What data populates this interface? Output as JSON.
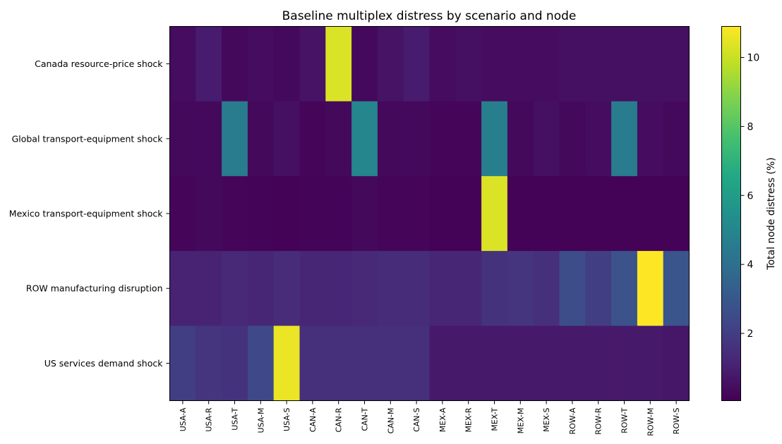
{
  "chart_data": {
    "type": "heatmap",
    "title": "Baseline multiplex distress by scenario and node",
    "colorbar_label": "Total node distress (%)",
    "colorbar_ticks": [
      2,
      4,
      6,
      8,
      10
    ],
    "colorscale": "viridis",
    "vmin": 0.05,
    "vmax": 10.9,
    "x_categories": [
      "USA-A",
      "USA-R",
      "USA-T",
      "USA-M",
      "USA-S",
      "CAN-A",
      "CAN-R",
      "CAN-T",
      "CAN-M",
      "CAN-S",
      "MEX-A",
      "MEX-R",
      "MEX-T",
      "MEX-M",
      "MEX-S",
      "ROW-A",
      "ROW-R",
      "ROW-T",
      "ROW-M",
      "ROW-S"
    ],
    "y_categories": [
      "Canada resource-price shock",
      "Global transport-equipment shock",
      "Mexico transport-equipment shock",
      "ROW manufacturing disruption",
      "US services demand shock"
    ],
    "values": [
      [
        0.4,
        0.9,
        0.3,
        0.4,
        0.3,
        0.6,
        10.3,
        0.3,
        0.6,
        0.9,
        0.4,
        0.5,
        0.4,
        0.4,
        0.4,
        0.5,
        0.5,
        0.5,
        0.5,
        0.5
      ],
      [
        0.3,
        0.3,
        4.5,
        0.3,
        0.5,
        0.2,
        0.3,
        5.0,
        0.3,
        0.3,
        0.2,
        0.2,
        4.7,
        0.3,
        0.5,
        0.3,
        0.4,
        4.5,
        0.4,
        0.3
      ],
      [
        0.2,
        0.3,
        0.2,
        0.15,
        0.1,
        0.15,
        0.15,
        0.3,
        0.2,
        0.2,
        0.1,
        0.1,
        10.3,
        0.1,
        0.1,
        0.1,
        0.1,
        0.1,
        0.1,
        0.1
      ],
      [
        1.1,
        1.1,
        1.3,
        1.2,
        1.4,
        1.2,
        1.2,
        1.3,
        1.4,
        1.4,
        1.2,
        1.2,
        1.6,
        1.7,
        1.5,
        2.6,
        2.0,
        2.8,
        10.9,
        2.9
      ],
      [
        2.0,
        1.7,
        1.6,
        2.4,
        10.6,
        1.5,
        1.5,
        1.5,
        1.5,
        1.5,
        0.8,
        0.8,
        0.8,
        0.8,
        0.8,
        0.8,
        0.8,
        0.8,
        0.8,
        0.7
      ]
    ]
  }
}
